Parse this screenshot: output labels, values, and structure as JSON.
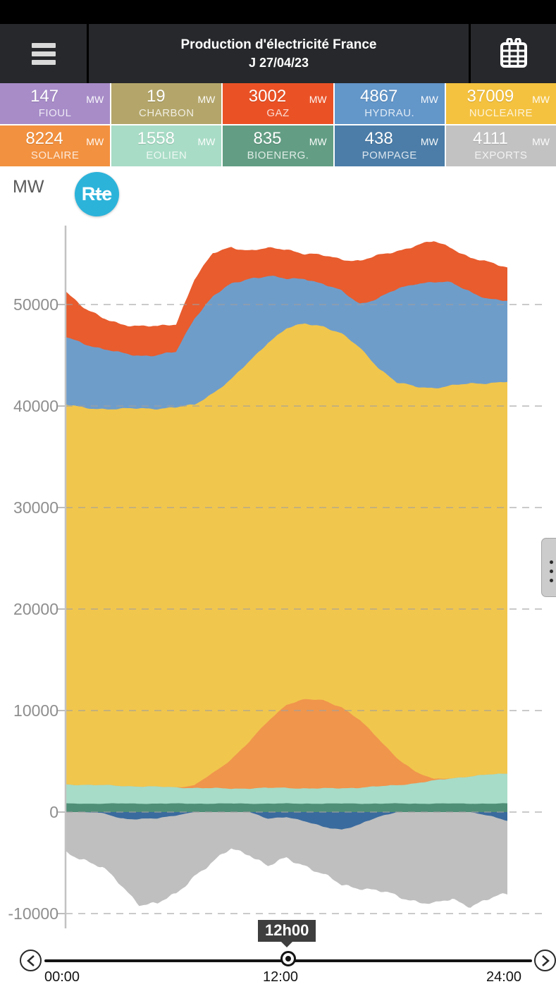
{
  "header": {
    "title_line1": "Production d'électricité France",
    "title_line2": "J 27/04/23"
  },
  "tiles": {
    "unit": "MW",
    "items": [
      {
        "id": "fioul",
        "label": "FIOUL",
        "value": "147",
        "color": "#a78cc8"
      },
      {
        "id": "charbon",
        "label": "CHARBON",
        "value": "19",
        "color": "#b4a66a"
      },
      {
        "id": "gaz",
        "label": "GAZ",
        "value": "3002",
        "color": "#ea5226"
      },
      {
        "id": "hydrau",
        "label": "HYDRAU.",
        "value": "4867",
        "color": "#6396c9"
      },
      {
        "id": "nucleaire",
        "label": "NUCLEAIRE",
        "value": "37009",
        "color": "#f4c23f"
      },
      {
        "id": "solaire",
        "label": "SOLAIRE",
        "value": "8224",
        "color": "#f2913f"
      },
      {
        "id": "eolien",
        "label": "EOLIEN",
        "value": "1558",
        "color": "#a8dcc6"
      },
      {
        "id": "bioenerg",
        "label": "BIOENERG.",
        "value": "835",
        "color": "#639e84"
      },
      {
        "id": "pompage",
        "label": "POMPAGE",
        "value": "438",
        "color": "#4b7da8"
      },
      {
        "id": "exports",
        "label": "EXPORTS",
        "value": "4111",
        "color": "#c2c2c2"
      }
    ]
  },
  "chart": {
    "unit_label": "MW",
    "logo_text": "Rte",
    "logo_color": "#2cb3da"
  },
  "chart_data": {
    "type": "area",
    "stacked": true,
    "title": "Production d'électricité France J 27/04/23",
    "ylabel": "MW",
    "x_unit": "hours",
    "xlim": [
      0,
      24
    ],
    "ylim": [
      -10000,
      57000
    ],
    "yticks": [
      50000,
      40000,
      30000,
      20000,
      10000,
      0,
      -10000
    ],
    "grid": "dashed horizontal, drawn over areas",
    "legend_position": "none (values shown in tiles above)",
    "x": [
      0,
      1,
      2,
      3,
      4,
      5,
      6,
      7,
      8,
      9,
      10,
      11,
      12,
      13,
      14,
      15,
      16,
      17,
      18,
      19,
      20,
      21,
      22,
      23,
      24
    ],
    "series": [
      {
        "name": "bioenergies",
        "color": "#4f8e77",
        "values": [
          835,
          835,
          835,
          835,
          835,
          835,
          835,
          835,
          835,
          835,
          835,
          835,
          835,
          835,
          835,
          835,
          835,
          835,
          835,
          835,
          835,
          835,
          835,
          835,
          835
        ]
      },
      {
        "name": "eolien",
        "color": "#a6dcc8",
        "values": [
          1900,
          1850,
          1800,
          1750,
          1700,
          1650,
          1600,
          1550,
          1500,
          1480,
          1500,
          1530,
          1558,
          1500,
          1480,
          1520,
          1580,
          1680,
          1820,
          2000,
          2250,
          2500,
          2700,
          2850,
          2950
        ]
      },
      {
        "name": "solaire",
        "color": "#f0954c",
        "values": [
          0,
          0,
          0,
          0,
          0,
          0,
          0,
          250,
          1500,
          2900,
          4600,
          6600,
          8224,
          8750,
          8700,
          8000,
          6600,
          4700,
          2700,
          1100,
          150,
          0,
          0,
          0,
          0
        ]
      },
      {
        "name": "nucleaire",
        "color": "#f1c64d",
        "values": [
          37415,
          37110,
          37115,
          37120,
          37210,
          37295,
          37420,
          37465,
          37460,
          37385,
          37470,
          37335,
          37009,
          37020,
          36880,
          36745,
          36690,
          36585,
          36940,
          37965,
          38570,
          38665,
          38660,
          38615,
          38600
        ]
      },
      {
        "name": "hydraulique",
        "color": "#6f9dca",
        "values": [
          6650,
          6400,
          5850,
          5500,
          5250,
          5220,
          5450,
          8600,
          9500,
          9400,
          8200,
          6500,
          4867,
          4500,
          4100,
          4200,
          4400,
          6800,
          9200,
          10200,
          10400,
          10100,
          9100,
          8200,
          7920
        ]
      },
      {
        "name": "gaz",
        "color": "#e85c2e",
        "values": [
          4600,
          3500,
          3000,
          2900,
          2900,
          2800,
          2800,
          3800,
          4200,
          3700,
          2700,
          2700,
          3002,
          2400,
          2800,
          3200,
          4200,
          4200,
          3800,
          3700,
          4000,
          3500,
          3300,
          3600,
          3400
        ]
      }
    ],
    "negative_series": [
      {
        "name": "pompage",
        "color": "#3a6b9e",
        "values": [
          0,
          0,
          100,
          600,
          700,
          650,
          300,
          0,
          0,
          0,
          0,
          700,
          438,
          900,
          1500,
          1700,
          1200,
          500,
          0,
          0,
          0,
          0,
          0,
          400,
          800
        ]
      },
      {
        "name": "exports",
        "color": "#bfbfbf",
        "values": [
          4000,
          4600,
          5400,
          6600,
          8300,
          8400,
          7800,
          6200,
          5000,
          3600,
          4100,
          4700,
          4111,
          4300,
          4700,
          5500,
          6200,
          7300,
          8300,
          8700,
          9100,
          8600,
          9200,
          8200,
          7300
        ]
      }
    ]
  },
  "time_cursor": {
    "label": "12h00"
  },
  "slider": {
    "position_pct": 50,
    "labels": [
      "00:00",
      "12:00",
      "24:00"
    ]
  }
}
